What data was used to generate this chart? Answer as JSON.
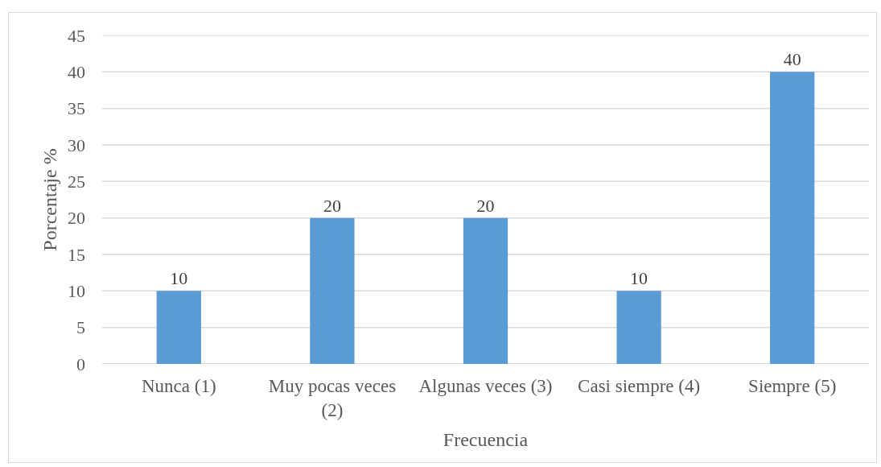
{
  "chart_data": {
    "type": "bar",
    "xlabel": "Frecuencia",
    "ylabel": "Porcentaje %",
    "categories": [
      "Nunca (1)",
      "Muy pocas veces (2)",
      "Algunas veces (3)",
      "Casi siempre (4)",
      "Siempre (5)"
    ],
    "values": [
      10,
      20,
      20,
      10,
      40
    ],
    "color": "#5b9bd5",
    "ylim": [
      0,
      45
    ],
    "yticks": [
      0,
      5,
      10,
      15,
      20,
      25,
      30,
      35,
      40,
      45
    ],
    "grid": "y",
    "data_labels": true
  }
}
